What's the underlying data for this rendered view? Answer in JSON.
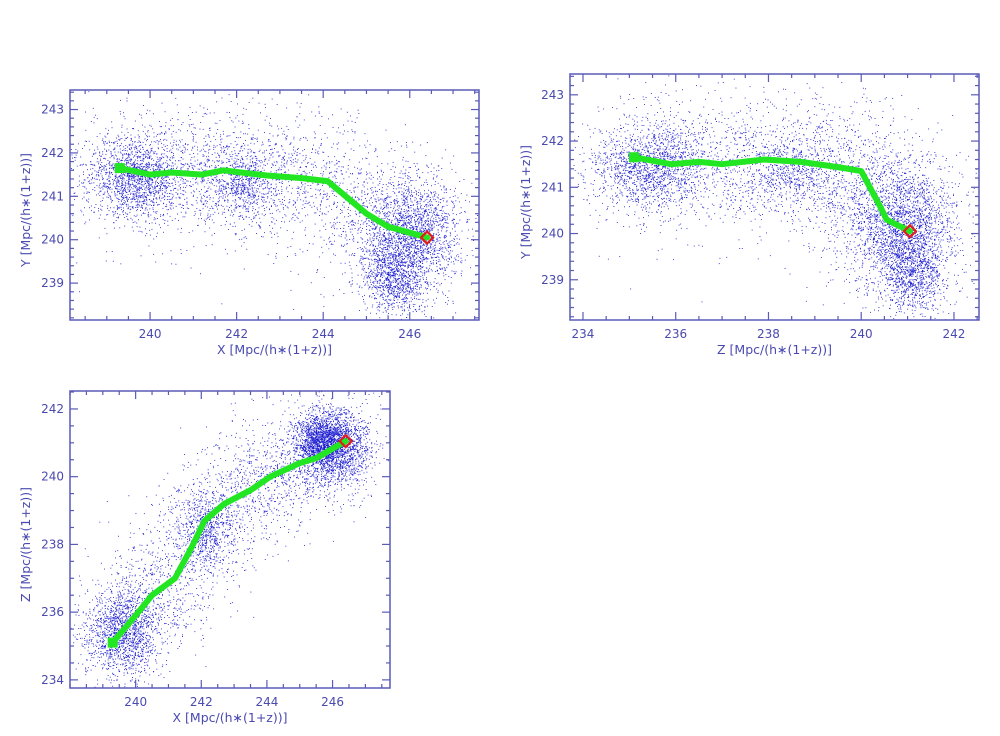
{
  "colors": {
    "points": "#1c1cd0",
    "axis": "#5a5ab8",
    "filament": "#22e622",
    "endpoint": "#e01c1c"
  },
  "chart_data": [
    {
      "type": "scatter",
      "title": "",
      "x_var": "x",
      "y_var": "y",
      "xlabel": "X [Mpc/(h∗(1+z))]",
      "ylabel": "Y [Mpc/(h∗(1+z))]",
      "xlim": [
        238.15,
        247.6
      ],
      "ylim": [
        238.15,
        243.45
      ],
      "xticks": [
        240,
        242,
        244,
        246
      ],
      "xtick_labels": [
        "240",
        "242",
        "244",
        "246"
      ],
      "yticks": [
        239,
        240,
        241,
        242,
        243
      ],
      "ytick_labels": [
        "239",
        "240",
        "241",
        "242",
        "243"
      ],
      "x_minor": 0.5,
      "y_minor": 0.2,
      "grid": false
    },
    {
      "type": "scatter",
      "title": "",
      "x_var": "z",
      "y_var": "y",
      "xlabel": "Z [Mpc/(h∗(1+z))]",
      "ylabel": "Y [Mpc/(h∗(1+z))]",
      "xlim": [
        233.72,
        242.54
      ],
      "ylim": [
        238.13,
        243.45
      ],
      "xticks": [
        234,
        236,
        238,
        240,
        242
      ],
      "xtick_labels": [
        "234",
        "236",
        "238",
        "240",
        "242"
      ],
      "yticks": [
        239,
        240,
        241,
        242,
        243
      ],
      "ytick_labels": [
        "239",
        "240",
        "241",
        "242",
        "243"
      ],
      "x_minor": 0.5,
      "y_minor": 0.2,
      "grid": false
    },
    {
      "type": "scatter",
      "title": "",
      "x_var": "x",
      "y_var": "z",
      "xlabel": "X [Mpc/(h∗(1+z))]",
      "ylabel": "Z [Mpc/(h∗(1+z))]",
      "xlim": [
        238.0,
        247.75
      ],
      "ylim": [
        233.76,
        242.53
      ],
      "xticks": [
        240,
        242,
        244,
        246
      ],
      "xtick_labels": [
        "240",
        "242",
        "244",
        "246"
      ],
      "yticks": [
        234,
        236,
        238,
        240,
        242
      ],
      "ytick_labels": [
        "234",
        "236",
        "238",
        "240",
        "242"
      ],
      "x_minor": 0.5,
      "y_minor": 0.5,
      "grid": false
    }
  ],
  "filament_path": [
    {
      "x": 239.3,
      "y": 241.65,
      "z": 235.1
    },
    {
      "x": 240.0,
      "y": 241.5,
      "z": 235.9
    },
    {
      "x": 240.5,
      "y": 241.55,
      "z": 236.5
    },
    {
      "x": 241.2,
      "y": 241.5,
      "z": 237.0
    },
    {
      "x": 241.7,
      "y": 241.6,
      "z": 237.9
    },
    {
      "x": 242.1,
      "y": 241.55,
      "z": 238.7
    },
    {
      "x": 242.7,
      "y": 241.48,
      "z": 239.2
    },
    {
      "x": 243.5,
      "y": 241.42,
      "z": 239.6
    },
    {
      "x": 244.1,
      "y": 241.35,
      "z": 240.0
    },
    {
      "x": 245.0,
      "y": 240.6,
      "z": 240.4
    },
    {
      "x": 245.5,
      "y": 240.3,
      "z": 240.55
    },
    {
      "x": 246.4,
      "y": 240.05,
      "z": 241.05
    }
  ],
  "endpoint": {
    "x": 246.4,
    "y": 240.05,
    "z": 241.05
  },
  "particle_clusters": [
    {
      "center": [
        239.6,
        241.45,
        235.4
      ],
      "sigma": [
        0.55,
        0.45,
        0.6
      ],
      "n": 1300
    },
    {
      "center": [
        242.2,
        241.3,
        238.4
      ],
      "sigma": [
        0.4,
        0.35,
        0.5
      ],
      "n": 450
    },
    {
      "center": [
        246.0,
        240.1,
        240.9
      ],
      "sigma": [
        0.55,
        0.65,
        0.55
      ],
      "n": 1900
    },
    {
      "center": [
        245.6,
        239.1,
        241.1
      ],
      "sigma": [
        0.35,
        0.4,
        0.35
      ],
      "n": 800
    }
  ],
  "filament_spread": {
    "sigma": 1.0,
    "n": 2600
  }
}
